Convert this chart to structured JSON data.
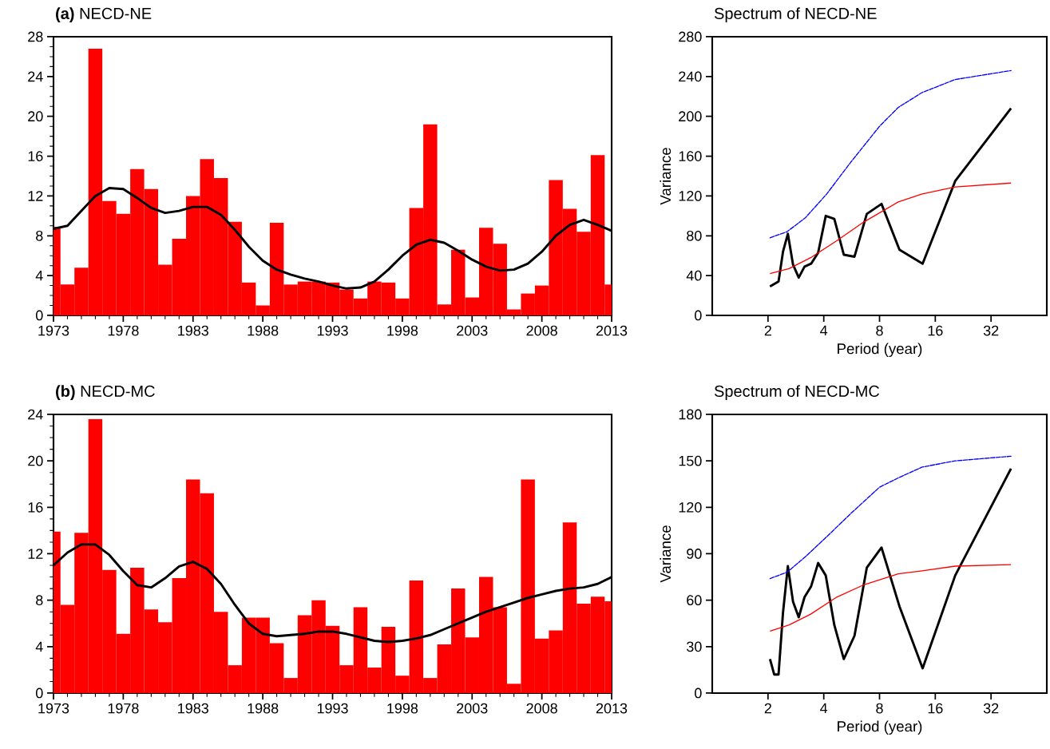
{
  "chart_data": [
    {
      "type": "bar",
      "title": "**(a)** NECD-NE",
      "x": [
        1973,
        1974,
        1975,
        1976,
        1977,
        1978,
        1979,
        1980,
        1981,
        1982,
        1983,
        1984,
        1985,
        1986,
        1987,
        1988,
        1989,
        1990,
        1991,
        1992,
        1993,
        1994,
        1995,
        1996,
        1997,
        1998,
        1999,
        2000,
        2001,
        2002,
        2003,
        2004,
        2005,
        2006,
        2007,
        2008,
        2009,
        2010,
        2011,
        2012,
        2013
      ],
      "xlim": [
        1973,
        2013
      ],
      "xticks": [
        1973,
        1978,
        1983,
        1988,
        1993,
        1998,
        2003,
        2008,
        2013
      ],
      "ylim": [
        0,
        28
      ],
      "yticks": [
        0,
        4,
        8,
        12,
        16,
        20,
        24,
        28
      ],
      "series": [
        {
          "color": "#ff0000",
          "values": [
            8.9,
            3.1,
            4.8,
            26.8,
            11.5,
            10.2,
            14.7,
            12.7,
            5.1,
            7.7,
            12.0,
            15.7,
            13.8,
            9.4,
            3.3,
            1.0,
            9.3,
            3.1,
            3.4,
            3.4,
            3.3,
            2.6,
            1.7,
            3.4,
            3.3,
            1.7,
            10.8,
            19.2,
            1.1,
            6.6,
            1.8,
            8.8,
            7.2,
            0.6,
            2.2,
            3.0,
            13.6,
            10.7,
            8.4,
            16.1,
            3.1
          ]
        },
        {
          "type": "line",
          "color": "#000000",
          "values": [
            8.7,
            9.0,
            10.5,
            12.0,
            12.8,
            12.7,
            11.8,
            10.8,
            10.3,
            10.5,
            10.9,
            10.9,
            10.1,
            8.6,
            6.9,
            5.5,
            4.6,
            4.1,
            3.7,
            3.4,
            3.0,
            2.7,
            2.8,
            3.4,
            4.6,
            6.0,
            7.1,
            7.6,
            7.3,
            6.5,
            5.6,
            4.9,
            4.5,
            4.6,
            5.2,
            6.4,
            8.0,
            9.1,
            9.6,
            9.1,
            8.5
          ]
        }
      ]
    },
    {
      "type": "line",
      "title": "Spectrum of NECD-NE",
      "xlabel": "Period (year)",
      "ylabel": "Variance",
      "log": "x",
      "xlim": [
        1,
        64
      ],
      "xticks": [
        2,
        4,
        8,
        16,
        32
      ],
      "ylim": [
        0,
        280
      ],
      "yticks": [
        0,
        40,
        80,
        120,
        160,
        200,
        240,
        280
      ],
      "series": [
        {
          "color": "#000000",
          "x": [
            2.05,
            2.28,
            2.41,
            2.56,
            2.73,
            2.93,
            3.15,
            3.42,
            3.73,
            4.1,
            4.56,
            5.13,
            5.86,
            6.83,
            8.2,
            10.25,
            13.67,
            20.5,
            41
          ],
          "values": [
            29,
            34,
            64,
            82,
            51,
            38,
            49,
            52,
            63,
            100,
            97,
            61,
            59,
            102,
            112,
            66,
            52,
            135,
            208
          ]
        },
        {
          "color": "#ff0000",
          "x": [
            2.05,
            2.6,
            3.4,
            4.7,
            6.6,
            10.1,
            13.6,
            20.5,
            41
          ],
          "values": [
            42,
            47,
            58,
            75,
            94,
            114,
            122,
            129,
            133
          ]
        },
        {
          "color": "#0000ff",
          "line_style": "dashed",
          "x": [
            2.05,
            2.53,
            3.18,
            4.15,
            5.6,
            8.0,
            10.1,
            13.6,
            20.5,
            41
          ],
          "values": [
            78,
            84,
            98,
            122,
            154,
            190,
            209,
            224,
            237,
            246
          ]
        }
      ]
    },
    {
      "type": "bar",
      "title": "**(b)** NECD-MC",
      "x": [
        1973,
        1974,
        1975,
        1976,
        1977,
        1978,
        1979,
        1980,
        1981,
        1982,
        1983,
        1984,
        1985,
        1986,
        1987,
        1988,
        1989,
        1990,
        1991,
        1992,
        1993,
        1994,
        1995,
        1996,
        1997,
        1998,
        1999,
        2000,
        2001,
        2002,
        2003,
        2004,
        2005,
        2006,
        2007,
        2008,
        2009,
        2010,
        2011,
        2012,
        2013
      ],
      "xlim": [
        1973,
        2013
      ],
      "xticks": [
        1973,
        1978,
        1983,
        1988,
        1993,
        1998,
        2003,
        2008,
        2013
      ],
      "ylim": [
        0,
        24
      ],
      "yticks": [
        0,
        4,
        8,
        12,
        16,
        20,
        24
      ],
      "series": [
        {
          "color": "#ff0000",
          "values": [
            13.9,
            7.6,
            13.8,
            23.6,
            10.6,
            5.1,
            10.8,
            7.2,
            6.1,
            9.9,
            18.4,
            17.2,
            7.0,
            2.4,
            6.5,
            6.5,
            4.3,
            1.3,
            6.7,
            8.0,
            5.8,
            2.4,
            7.4,
            2.2,
            5.7,
            1.5,
            9.7,
            1.3,
            4.2,
            9.0,
            4.8,
            10.0,
            7.4,
            0.8,
            18.4,
            4.7,
            5.4,
            14.7,
            7.7,
            8.3,
            7.9
          ]
        },
        {
          "type": "line",
          "color": "#000000",
          "values": [
            11.0,
            12.1,
            12.8,
            12.8,
            11.9,
            10.5,
            9.3,
            9.1,
            9.9,
            10.9,
            11.3,
            10.7,
            9.4,
            7.6,
            6.0,
            5.1,
            4.9,
            5.0,
            5.1,
            5.3,
            5.3,
            5.1,
            4.8,
            4.5,
            4.4,
            4.5,
            4.7,
            5.0,
            5.5,
            6.0,
            6.5,
            7.0,
            7.4,
            7.8,
            8.2,
            8.5,
            8.8,
            9.0,
            9.1,
            9.4,
            10.0
          ]
        }
      ]
    },
    {
      "type": "line",
      "title": "Spectrum of NECD-MC",
      "xlabel": "Period (year)",
      "ylabel": "Variance",
      "log": "x",
      "xlim": [
        1,
        64
      ],
      "xticks": [
        2,
        4,
        8,
        16,
        32
      ],
      "ylim": [
        0,
        180
      ],
      "yticks": [
        0,
        30,
        60,
        90,
        120,
        150,
        180
      ],
      "series": [
        {
          "color": "#000000",
          "x": [
            2.05,
            2.16,
            2.28,
            2.41,
            2.56,
            2.73,
            2.93,
            3.15,
            3.42,
            3.73,
            4.1,
            4.56,
            5.13,
            5.86,
            6.83,
            8.2,
            10.25,
            13.67,
            20.5,
            41
          ],
          "values": [
            22,
            12,
            12,
            52,
            82,
            59,
            49,
            62,
            69,
            84,
            76,
            44,
            22,
            37,
            81,
            94,
            56,
            16,
            76,
            145
          ]
        },
        {
          "color": "#ff0000",
          "x": [
            2.05,
            2.6,
            3.4,
            4.7,
            6.6,
            10.1,
            13.6,
            20.5,
            41
          ],
          "values": [
            40,
            44,
            51,
            62,
            70,
            77,
            79,
            82,
            83
          ]
        },
        {
          "color": "#0000ff",
          "line_style": "dashed",
          "x": [
            2.05,
            2.53,
            3.18,
            4.15,
            5.6,
            8.0,
            10.1,
            13.6,
            20.5,
            41
          ],
          "values": [
            74,
            78,
            88,
            101,
            116,
            133,
            139,
            146,
            150,
            153
          ]
        }
      ]
    }
  ]
}
